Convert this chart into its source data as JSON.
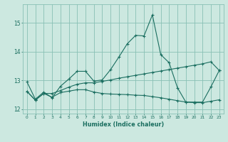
{
  "xlabel": "Humidex (Indice chaleur)",
  "background_color": "#cce8e0",
  "grid_color": "#88c0b4",
  "line_color": "#1a6e60",
  "xlim": [
    -0.5,
    23.5
  ],
  "ylim": [
    11.85,
    15.65
  ],
  "yticks": [
    12,
    13,
    14,
    15
  ],
  "xticks": [
    0,
    1,
    2,
    3,
    4,
    5,
    6,
    7,
    8,
    9,
    10,
    11,
    12,
    13,
    14,
    15,
    16,
    17,
    18,
    19,
    20,
    21,
    22,
    23
  ],
  "line1_x": [
    0,
    1,
    2,
    3,
    4,
    5,
    6,
    7,
    8,
    9,
    10,
    11,
    12,
    13,
    14,
    15,
    16,
    17,
    18,
    19,
    20,
    21,
    22,
    23
  ],
  "line1_y": [
    12.95,
    12.35,
    12.6,
    12.4,
    12.8,
    13.05,
    13.32,
    13.32,
    12.98,
    13.02,
    13.38,
    13.82,
    14.28,
    14.57,
    14.55,
    15.28,
    13.9,
    13.62,
    12.75,
    12.25,
    12.25,
    12.25,
    12.78,
    13.35
  ],
  "line2_x": [
    0,
    1,
    2,
    3,
    4,
    5,
    6,
    7,
    8,
    9,
    10,
    11,
    12,
    13,
    14,
    15,
    16,
    17,
    18,
    19,
    20,
    21,
    22,
    23
  ],
  "line2_y": [
    12.62,
    12.32,
    12.55,
    12.42,
    12.58,
    12.63,
    12.68,
    12.68,
    12.6,
    12.55,
    12.53,
    12.52,
    12.51,
    12.49,
    12.48,
    12.44,
    12.4,
    12.35,
    12.3,
    12.25,
    12.23,
    12.23,
    12.28,
    12.33
  ],
  "line3_x": [
    0,
    1,
    2,
    3,
    4,
    5,
    6,
    7,
    8,
    9,
    10,
    11,
    12,
    13,
    14,
    15,
    16,
    17,
    18,
    19,
    20,
    21,
    22,
    23
  ],
  "line3_y": [
    12.62,
    12.32,
    12.55,
    12.55,
    12.65,
    12.77,
    12.87,
    12.92,
    12.92,
    12.97,
    13.02,
    13.08,
    13.13,
    13.18,
    13.23,
    13.28,
    13.33,
    13.38,
    13.43,
    13.48,
    13.53,
    13.58,
    13.65,
    13.35
  ]
}
